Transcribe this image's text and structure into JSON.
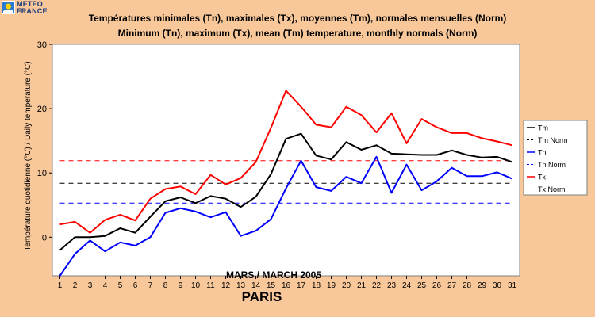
{
  "header": {
    "logo_line1": "METEO",
    "logo_line2": "FRANCE",
    "title_fr": "Températures minimales (Tn), maximales (Tx), moyennes (Tm), normales mensuelles (Norm)",
    "title_en": "Minimum (Tn), maximum (Tx), mean (Tm) temperature, monthly normals (Norm)",
    "city": "PARIS"
  },
  "colors": {
    "background": "#f9c89a",
    "plot_bg": "#ffffff",
    "tm": "#000000",
    "tn": "#0000ff",
    "tx": "#ff0000"
  },
  "chart_data": {
    "type": "line",
    "xlabel": "MARS / MARCH 2005",
    "ylabel": "Température quotidienne (°C) / Daily temperature (°C)",
    "x": [
      1,
      2,
      3,
      4,
      5,
      6,
      7,
      8,
      9,
      10,
      11,
      12,
      13,
      14,
      15,
      16,
      17,
      18,
      19,
      20,
      21,
      22,
      23,
      24,
      25,
      26,
      27,
      28,
      29,
      30,
      31
    ],
    "xlim": [
      0.5,
      31.5
    ],
    "ylim": [
      -6,
      30
    ],
    "yticks": [
      0,
      10,
      20,
      30
    ],
    "grid": false,
    "legend_position": "right",
    "series": [
      {
        "name": "Tm",
        "key": "tm",
        "style": "solid",
        "color": "#000000",
        "values": [
          -2,
          0,
          0,
          0.2,
          1.4,
          0.7,
          3.2,
          5.6,
          6.2,
          5.3,
          6.4,
          6,
          4.7,
          6.3,
          9.8,
          15.3,
          16.1,
          12.7,
          12.1,
          14.8,
          13.6,
          14.3,
          13,
          12.9,
          12.8,
          12.8,
          13.5,
          12.8,
          12.4,
          12.5,
          11.7
        ]
      },
      {
        "name": "Tm Norm",
        "key": "tm_norm",
        "style": "dashed",
        "color": "#000000",
        "values": [
          8.4,
          8.4,
          8.4,
          8.4,
          8.4,
          8.4,
          8.4,
          8.4,
          8.4,
          8.4,
          8.4,
          8.4,
          8.4,
          8.4,
          8.4,
          8.4,
          8.4,
          8.4,
          8.4,
          8.4,
          8.4,
          8.4,
          8.4,
          8.4,
          8.4,
          8.4,
          8.4,
          8.4,
          8.4,
          8.4,
          8.4
        ]
      },
      {
        "name": "Tn",
        "key": "tn",
        "style": "solid",
        "color": "#0000ff",
        "values": [
          -6,
          -2.6,
          -0.5,
          -2.2,
          -0.8,
          -1.3,
          0,
          3.8,
          4.5,
          4,
          3.1,
          3.9,
          0.2,
          1,
          2.8,
          7.6,
          11.9,
          7.8,
          7.2,
          9.4,
          8.4,
          12.5,
          6.9,
          11.3,
          7.3,
          8.7,
          10.8,
          9.5,
          9.5,
          10.1,
          9.1
        ]
      },
      {
        "name": "Tn Norm",
        "key": "tn_norm",
        "style": "dashed",
        "color": "#0000ff",
        "values": [
          5.3,
          5.3,
          5.3,
          5.3,
          5.3,
          5.3,
          5.3,
          5.3,
          5.3,
          5.3,
          5.3,
          5.3,
          5.3,
          5.3,
          5.3,
          5.3,
          5.3,
          5.3,
          5.3,
          5.3,
          5.3,
          5.3,
          5.3,
          5.3,
          5.3,
          5.3,
          5.3,
          5.3,
          5.3,
          5.3,
          5.3
        ]
      },
      {
        "name": "Tx",
        "key": "tx",
        "style": "solid",
        "color": "#ff0000",
        "values": [
          2,
          2.4,
          0.7,
          2.7,
          3.5,
          2.6,
          6,
          7.5,
          7.9,
          6.7,
          9.7,
          8.2,
          9.2,
          11.7,
          17,
          22.8,
          20.3,
          17.5,
          17.1,
          20.3,
          19,
          16.3,
          19.3,
          14.6,
          18.4,
          17.1,
          16.2,
          16.2,
          15.4,
          14.9,
          14.3
        ]
      },
      {
        "name": "Tx Norm",
        "key": "tx_norm",
        "style": "dashed",
        "color": "#ff0000",
        "values": [
          11.9,
          11.9,
          11.9,
          11.9,
          11.9,
          11.9,
          11.9,
          11.9,
          11.9,
          11.9,
          11.9,
          11.9,
          11.9,
          11.9,
          11.9,
          11.9,
          11.9,
          11.9,
          11.9,
          11.9,
          11.9,
          11.9,
          11.9,
          11.9,
          11.9,
          11.9,
          11.9,
          11.9,
          11.9,
          11.9,
          11.9
        ]
      }
    ]
  }
}
